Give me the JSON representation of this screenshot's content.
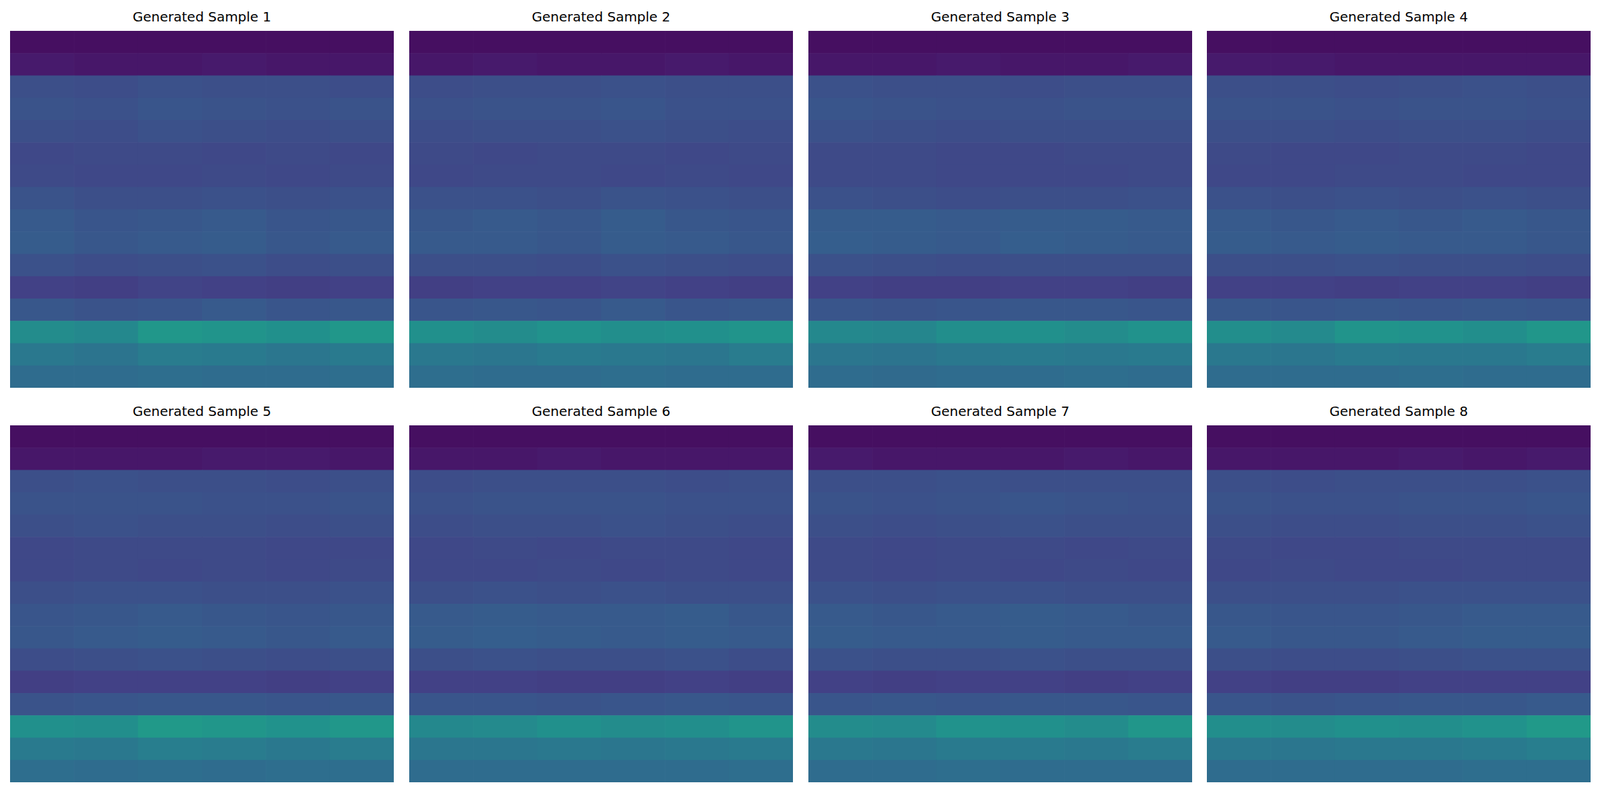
{
  "chart_data": [
    {
      "type": "heatmap",
      "title": "Generated Sample 1",
      "tick_labels": false,
      "color": "viridis",
      "zlim": [
        0,
        1
      ],
      "cells": [
        [
          0.05,
          0.05,
          0.05,
          0.05,
          0.05,
          0.05
        ],
        [
          0.09,
          0.08,
          0.08,
          0.09,
          0.08,
          0.08
        ],
        [
          0.3,
          0.29,
          0.31,
          0.3,
          0.3,
          0.29
        ],
        [
          0.32,
          0.31,
          0.33,
          0.32,
          0.31,
          0.32
        ],
        [
          0.3,
          0.29,
          0.31,
          0.3,
          0.29,
          0.3
        ],
        [
          0.27,
          0.28,
          0.28,
          0.27,
          0.28,
          0.27
        ],
        [
          0.28,
          0.27,
          0.27,
          0.28,
          0.27,
          0.28
        ],
        [
          0.32,
          0.3,
          0.3,
          0.31,
          0.3,
          0.31
        ],
        [
          0.35,
          0.33,
          0.34,
          0.35,
          0.33,
          0.34
        ],
        [
          0.36,
          0.34,
          0.35,
          0.36,
          0.34,
          0.35
        ],
        [
          0.31,
          0.29,
          0.3,
          0.31,
          0.29,
          0.3
        ],
        [
          0.24,
          0.23,
          0.25,
          0.24,
          0.23,
          0.24
        ],
        [
          0.34,
          0.32,
          0.33,
          0.35,
          0.33,
          0.34
        ],
        [
          0.6,
          0.58,
          0.66,
          0.64,
          0.62,
          0.66
        ],
        [
          0.5,
          0.48,
          0.52,
          0.51,
          0.49,
          0.51
        ],
        [
          0.44,
          0.44,
          0.45,
          0.44,
          0.44,
          0.45
        ]
      ]
    },
    {
      "type": "heatmap",
      "title": "Generated Sample 2",
      "tick_labels": false,
      "color": "viridis",
      "zlim": [
        0,
        1
      ],
      "cells": [
        [
          0.05,
          0.05,
          0.05,
          0.05,
          0.05,
          0.05
        ],
        [
          0.08,
          0.09,
          0.08,
          0.08,
          0.09,
          0.08
        ],
        [
          0.29,
          0.3,
          0.3,
          0.31,
          0.3,
          0.3
        ],
        [
          0.31,
          0.32,
          0.32,
          0.33,
          0.31,
          0.31
        ],
        [
          0.29,
          0.3,
          0.3,
          0.31,
          0.3,
          0.29
        ],
        [
          0.28,
          0.27,
          0.28,
          0.28,
          0.27,
          0.28
        ],
        [
          0.27,
          0.28,
          0.28,
          0.27,
          0.28,
          0.27
        ],
        [
          0.31,
          0.31,
          0.3,
          0.32,
          0.31,
          0.3
        ],
        [
          0.34,
          0.35,
          0.34,
          0.36,
          0.34,
          0.33
        ],
        [
          0.35,
          0.35,
          0.34,
          0.36,
          0.35,
          0.34
        ],
        [
          0.3,
          0.3,
          0.29,
          0.31,
          0.3,
          0.29
        ],
        [
          0.23,
          0.24,
          0.24,
          0.25,
          0.24,
          0.23
        ],
        [
          0.33,
          0.34,
          0.33,
          0.35,
          0.33,
          0.34
        ],
        [
          0.62,
          0.6,
          0.63,
          0.61,
          0.62,
          0.64
        ],
        [
          0.5,
          0.49,
          0.51,
          0.5,
          0.49,
          0.52
        ],
        [
          0.45,
          0.44,
          0.44,
          0.45,
          0.44,
          0.44
        ]
      ]
    },
    {
      "type": "heatmap",
      "title": "Generated Sample 3",
      "tick_labels": false,
      "color": "viridis",
      "zlim": [
        0,
        1
      ],
      "cells": [
        [
          0.05,
          0.05,
          0.05,
          0.05,
          0.05,
          0.05
        ],
        [
          0.08,
          0.08,
          0.09,
          0.08,
          0.08,
          0.09
        ],
        [
          0.31,
          0.3,
          0.3,
          0.29,
          0.3,
          0.3
        ],
        [
          0.33,
          0.32,
          0.31,
          0.31,
          0.32,
          0.32
        ],
        [
          0.31,
          0.3,
          0.29,
          0.3,
          0.3,
          0.3
        ],
        [
          0.28,
          0.28,
          0.27,
          0.27,
          0.28,
          0.28
        ],
        [
          0.28,
          0.28,
          0.27,
          0.27,
          0.27,
          0.28
        ],
        [
          0.31,
          0.3,
          0.29,
          0.3,
          0.3,
          0.31
        ],
        [
          0.36,
          0.36,
          0.35,
          0.36,
          0.36,
          0.35
        ],
        [
          0.37,
          0.36,
          0.35,
          0.37,
          0.36,
          0.35
        ],
        [
          0.31,
          0.3,
          0.29,
          0.3,
          0.3,
          0.3
        ],
        [
          0.24,
          0.23,
          0.23,
          0.24,
          0.24,
          0.23
        ],
        [
          0.33,
          0.32,
          0.33,
          0.34,
          0.34,
          0.33
        ],
        [
          0.58,
          0.57,
          0.61,
          0.62,
          0.6,
          0.63
        ],
        [
          0.49,
          0.48,
          0.5,
          0.51,
          0.5,
          0.51
        ],
        [
          0.44,
          0.43,
          0.44,
          0.44,
          0.45,
          0.44
        ]
      ]
    },
    {
      "type": "heatmap",
      "title": "Generated Sample 4",
      "tick_labels": false,
      "color": "viridis",
      "zlim": [
        0,
        1
      ],
      "cells": [
        [
          0.05,
          0.05,
          0.05,
          0.05,
          0.05,
          0.05
        ],
        [
          0.09,
          0.09,
          0.08,
          0.08,
          0.08,
          0.08
        ],
        [
          0.3,
          0.3,
          0.29,
          0.3,
          0.31,
          0.3
        ],
        [
          0.32,
          0.32,
          0.31,
          0.32,
          0.32,
          0.31
        ],
        [
          0.3,
          0.3,
          0.29,
          0.3,
          0.3,
          0.29
        ],
        [
          0.28,
          0.27,
          0.27,
          0.28,
          0.28,
          0.27
        ],
        [
          0.27,
          0.27,
          0.28,
          0.28,
          0.27,
          0.27
        ],
        [
          0.31,
          0.3,
          0.31,
          0.3,
          0.31,
          0.3
        ],
        [
          0.35,
          0.34,
          0.35,
          0.34,
          0.35,
          0.34
        ],
        [
          0.36,
          0.35,
          0.36,
          0.35,
          0.35,
          0.34
        ],
        [
          0.3,
          0.3,
          0.31,
          0.3,
          0.3,
          0.29
        ],
        [
          0.24,
          0.24,
          0.23,
          0.24,
          0.24,
          0.23
        ],
        [
          0.34,
          0.33,
          0.34,
          0.33,
          0.34,
          0.33
        ],
        [
          0.61,
          0.59,
          0.64,
          0.63,
          0.61,
          0.65
        ],
        [
          0.5,
          0.49,
          0.51,
          0.5,
          0.5,
          0.52
        ],
        [
          0.44,
          0.44,
          0.44,
          0.45,
          0.44,
          0.44
        ]
      ]
    },
    {
      "type": "heatmap",
      "title": "Generated Sample 5",
      "tick_labels": false,
      "color": "viridis",
      "zlim": [
        0,
        1
      ],
      "cells": [
        [
          0.05,
          0.05,
          0.05,
          0.05,
          0.05,
          0.05
        ],
        [
          0.08,
          0.08,
          0.08,
          0.09,
          0.09,
          0.08
        ],
        [
          0.3,
          0.31,
          0.3,
          0.3,
          0.29,
          0.3
        ],
        [
          0.32,
          0.32,
          0.32,
          0.31,
          0.31,
          0.32
        ],
        [
          0.3,
          0.31,
          0.3,
          0.3,
          0.29,
          0.3
        ],
        [
          0.27,
          0.28,
          0.28,
          0.28,
          0.27,
          0.27
        ],
        [
          0.27,
          0.28,
          0.27,
          0.28,
          0.27,
          0.28
        ],
        [
          0.3,
          0.31,
          0.31,
          0.3,
          0.3,
          0.31
        ],
        [
          0.33,
          0.34,
          0.35,
          0.34,
          0.33,
          0.34
        ],
        [
          0.34,
          0.35,
          0.36,
          0.35,
          0.34,
          0.35
        ],
        [
          0.29,
          0.3,
          0.31,
          0.3,
          0.29,
          0.3
        ],
        [
          0.23,
          0.24,
          0.24,
          0.24,
          0.23,
          0.24
        ],
        [
          0.32,
          0.33,
          0.34,
          0.34,
          0.33,
          0.34
        ],
        [
          0.62,
          0.61,
          0.67,
          0.65,
          0.63,
          0.66
        ],
        [
          0.51,
          0.5,
          0.53,
          0.52,
          0.5,
          0.52
        ],
        [
          0.45,
          0.44,
          0.45,
          0.44,
          0.45,
          0.45
        ]
      ]
    },
    {
      "type": "heatmap",
      "title": "Generated Sample 6",
      "tick_labels": false,
      "color": "viridis",
      "zlim": [
        0,
        1
      ],
      "cells": [
        [
          0.05,
          0.05,
          0.05,
          0.05,
          0.05,
          0.05
        ],
        [
          0.08,
          0.08,
          0.09,
          0.08,
          0.08,
          0.08
        ],
        [
          0.29,
          0.3,
          0.3,
          0.3,
          0.29,
          0.3
        ],
        [
          0.31,
          0.32,
          0.32,
          0.32,
          0.31,
          0.31
        ],
        [
          0.29,
          0.3,
          0.3,
          0.31,
          0.3,
          0.29
        ],
        [
          0.27,
          0.28,
          0.27,
          0.28,
          0.28,
          0.27
        ],
        [
          0.27,
          0.27,
          0.28,
          0.27,
          0.28,
          0.27
        ],
        [
          0.3,
          0.31,
          0.3,
          0.31,
          0.3,
          0.3
        ],
        [
          0.35,
          0.36,
          0.35,
          0.35,
          0.36,
          0.34
        ],
        [
          0.36,
          0.37,
          0.36,
          0.35,
          0.36,
          0.35
        ],
        [
          0.3,
          0.31,
          0.3,
          0.3,
          0.31,
          0.29
        ],
        [
          0.24,
          0.24,
          0.23,
          0.23,
          0.24,
          0.23
        ],
        [
          0.33,
          0.33,
          0.32,
          0.33,
          0.34,
          0.33
        ],
        [
          0.58,
          0.59,
          0.62,
          0.6,
          0.61,
          0.64
        ],
        [
          0.49,
          0.49,
          0.5,
          0.49,
          0.5,
          0.51
        ],
        [
          0.44,
          0.44,
          0.44,
          0.44,
          0.44,
          0.45
        ]
      ]
    },
    {
      "type": "heatmap",
      "title": "Generated Sample 7",
      "tick_labels": false,
      "color": "viridis",
      "zlim": [
        0,
        1
      ],
      "cells": [
        [
          0.05,
          0.05,
          0.05,
          0.05,
          0.05,
          0.05
        ],
        [
          0.09,
          0.08,
          0.08,
          0.08,
          0.09,
          0.08
        ],
        [
          0.3,
          0.3,
          0.31,
          0.3,
          0.3,
          0.3
        ],
        [
          0.32,
          0.31,
          0.32,
          0.33,
          0.32,
          0.31
        ],
        [
          0.3,
          0.29,
          0.3,
          0.31,
          0.3,
          0.3
        ],
        [
          0.28,
          0.27,
          0.28,
          0.28,
          0.27,
          0.28
        ],
        [
          0.28,
          0.27,
          0.28,
          0.27,
          0.28,
          0.27
        ],
        [
          0.31,
          0.3,
          0.31,
          0.31,
          0.3,
          0.3
        ],
        [
          0.35,
          0.34,
          0.35,
          0.36,
          0.35,
          0.34
        ],
        [
          0.36,
          0.35,
          0.35,
          0.36,
          0.35,
          0.35
        ],
        [
          0.31,
          0.3,
          0.3,
          0.31,
          0.3,
          0.3
        ],
        [
          0.24,
          0.23,
          0.24,
          0.24,
          0.23,
          0.24
        ],
        [
          0.33,
          0.34,
          0.33,
          0.34,
          0.34,
          0.33
        ],
        [
          0.6,
          0.59,
          0.63,
          0.62,
          0.6,
          0.65
        ],
        [
          0.5,
          0.49,
          0.51,
          0.51,
          0.5,
          0.52
        ],
        [
          0.44,
          0.44,
          0.45,
          0.44,
          0.44,
          0.44
        ]
      ]
    },
    {
      "type": "heatmap",
      "title": "Generated Sample 8",
      "tick_labels": false,
      "color": "viridis",
      "zlim": [
        0,
        1
      ],
      "cells": [
        [
          0.05,
          0.05,
          0.05,
          0.05,
          0.05,
          0.05
        ],
        [
          0.08,
          0.08,
          0.08,
          0.09,
          0.08,
          0.09
        ],
        [
          0.3,
          0.29,
          0.3,
          0.3,
          0.3,
          0.31
        ],
        [
          0.32,
          0.31,
          0.31,
          0.32,
          0.32,
          0.33
        ],
        [
          0.3,
          0.29,
          0.29,
          0.3,
          0.3,
          0.31
        ],
        [
          0.28,
          0.27,
          0.27,
          0.28,
          0.28,
          0.28
        ],
        [
          0.27,
          0.28,
          0.27,
          0.27,
          0.28,
          0.28
        ],
        [
          0.3,
          0.3,
          0.3,
          0.31,
          0.31,
          0.31
        ],
        [
          0.34,
          0.33,
          0.33,
          0.34,
          0.35,
          0.35
        ],
        [
          0.35,
          0.34,
          0.34,
          0.35,
          0.36,
          0.36
        ],
        [
          0.3,
          0.29,
          0.29,
          0.3,
          0.31,
          0.31
        ],
        [
          0.24,
          0.23,
          0.23,
          0.24,
          0.24,
          0.24
        ],
        [
          0.33,
          0.32,
          0.33,
          0.34,
          0.34,
          0.35
        ],
        [
          0.61,
          0.6,
          0.62,
          0.61,
          0.63,
          0.67
        ],
        [
          0.5,
          0.49,
          0.5,
          0.5,
          0.51,
          0.53
        ],
        [
          0.44,
          0.44,
          0.44,
          0.44,
          0.45,
          0.45
        ]
      ]
    }
  ]
}
